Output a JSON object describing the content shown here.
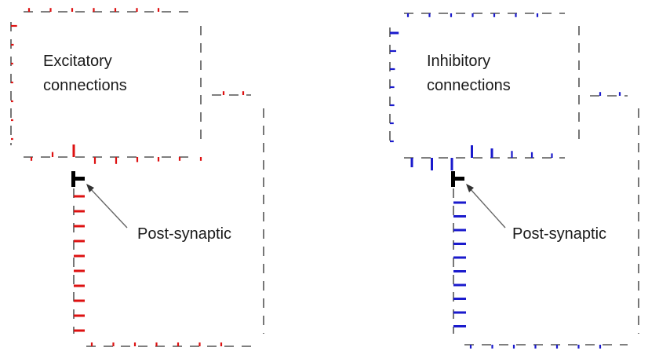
{
  "panels": [
    {
      "id": "excitatory",
      "title_lines": [
        "Excitatory",
        "connections"
      ],
      "pointer_label": "Post-synaptic",
      "color": "#dd1111",
      "top_row": [
        0.3,
        0.3,
        0.3,
        0.3,
        0.3,
        0.3,
        0.3
      ],
      "left_column": [
        0.55,
        0.25,
        0.2,
        0.2,
        0.2,
        0.2,
        0.2
      ],
      "mid_row": [
        -0.3,
        0.4,
        1.0,
        -0.55,
        -0.55,
        -0.4,
        -0.35,
        -0.3,
        -0.3
      ],
      "lower_column": [
        1.0,
        1.0,
        1.0,
        1.0,
        1.0,
        1.0,
        1.0,
        1.0,
        1.0,
        1.0
      ],
      "bottom_row": [
        0.3,
        0.3,
        0.3,
        0.3,
        0.3,
        0.3,
        0.3
      ],
      "side_row": [
        0.3,
        0.3
      ]
    },
    {
      "id": "inhibitory",
      "title_lines": [
        "Inhibitory",
        "connections"
      ],
      "pointer_label": "Post-synaptic",
      "color": "#1a1acc",
      "top_row": [
        -0.3,
        -0.3,
        -0.3,
        -0.3,
        -0.3,
        -0.3,
        -0.3
      ],
      "left_column": [
        -0.7,
        -0.5,
        -0.4,
        -0.35,
        -0.35,
        -0.3,
        -0.3
      ],
      "mid_row": [
        -0.75,
        -1.0,
        -1.0,
        1.0,
        0.75,
        0.55,
        0.45,
        0.35
      ],
      "lower_column": [
        -1.0,
        -1.0,
        -1.0,
        -1.0,
        -1.0,
        -1.0,
        -1.0,
        -1.0,
        -1.0,
        -1.0
      ],
      "bottom_row": [
        -0.3,
        -0.3,
        -0.3,
        -0.3,
        -0.3,
        -0.3,
        -0.3
      ],
      "side_row": [
        0.3,
        0.3
      ]
    }
  ]
}
